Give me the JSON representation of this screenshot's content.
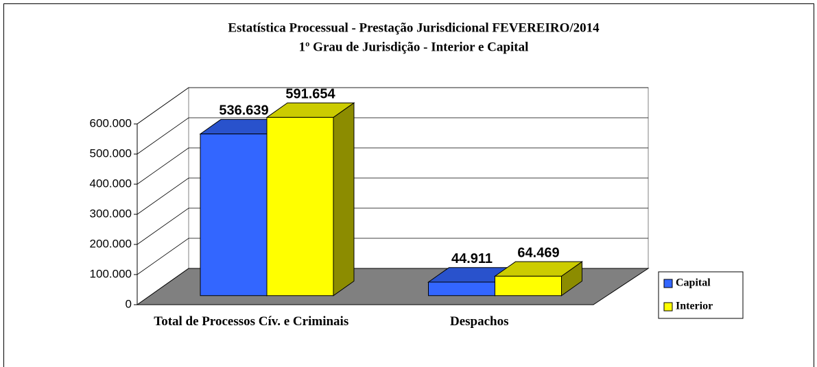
{
  "chart_data": {
    "type": "bar3d",
    "title": "Estatística Processual - Prestação Jurisdicional FEVEREIRO/2014",
    "subtitle": "1º Grau de Jurisdição - Interior e Capital",
    "categories": [
      "Total de Processos Cív. e Criminais",
      "Despachos"
    ],
    "series": [
      {
        "name": "Capital",
        "color": "#3366ff",
        "values": [
          536639,
          44911
        ],
        "value_labels": [
          "536.639",
          "44.911"
        ]
      },
      {
        "name": "Interior",
        "color": "#ffff00",
        "values": [
          591654,
          64469
        ],
        "value_labels": [
          "591.654",
          "64.469"
        ]
      }
    ],
    "ylim": [
      0,
      600000
    ],
    "yticks": [
      0,
      {
        "value": 100000,
        "label": "100.000"
      },
      {
        "value": 200000,
        "label": "200.000"
      },
      {
        "value": 300000,
        "label": "300.000"
      },
      {
        "value": 400000,
        "label": "400.000"
      },
      {
        "value": 500000,
        "label": "500.000"
      },
      {
        "value": 600000,
        "label": "600.000"
      }
    ],
    "grid": true,
    "legend": "right"
  }
}
